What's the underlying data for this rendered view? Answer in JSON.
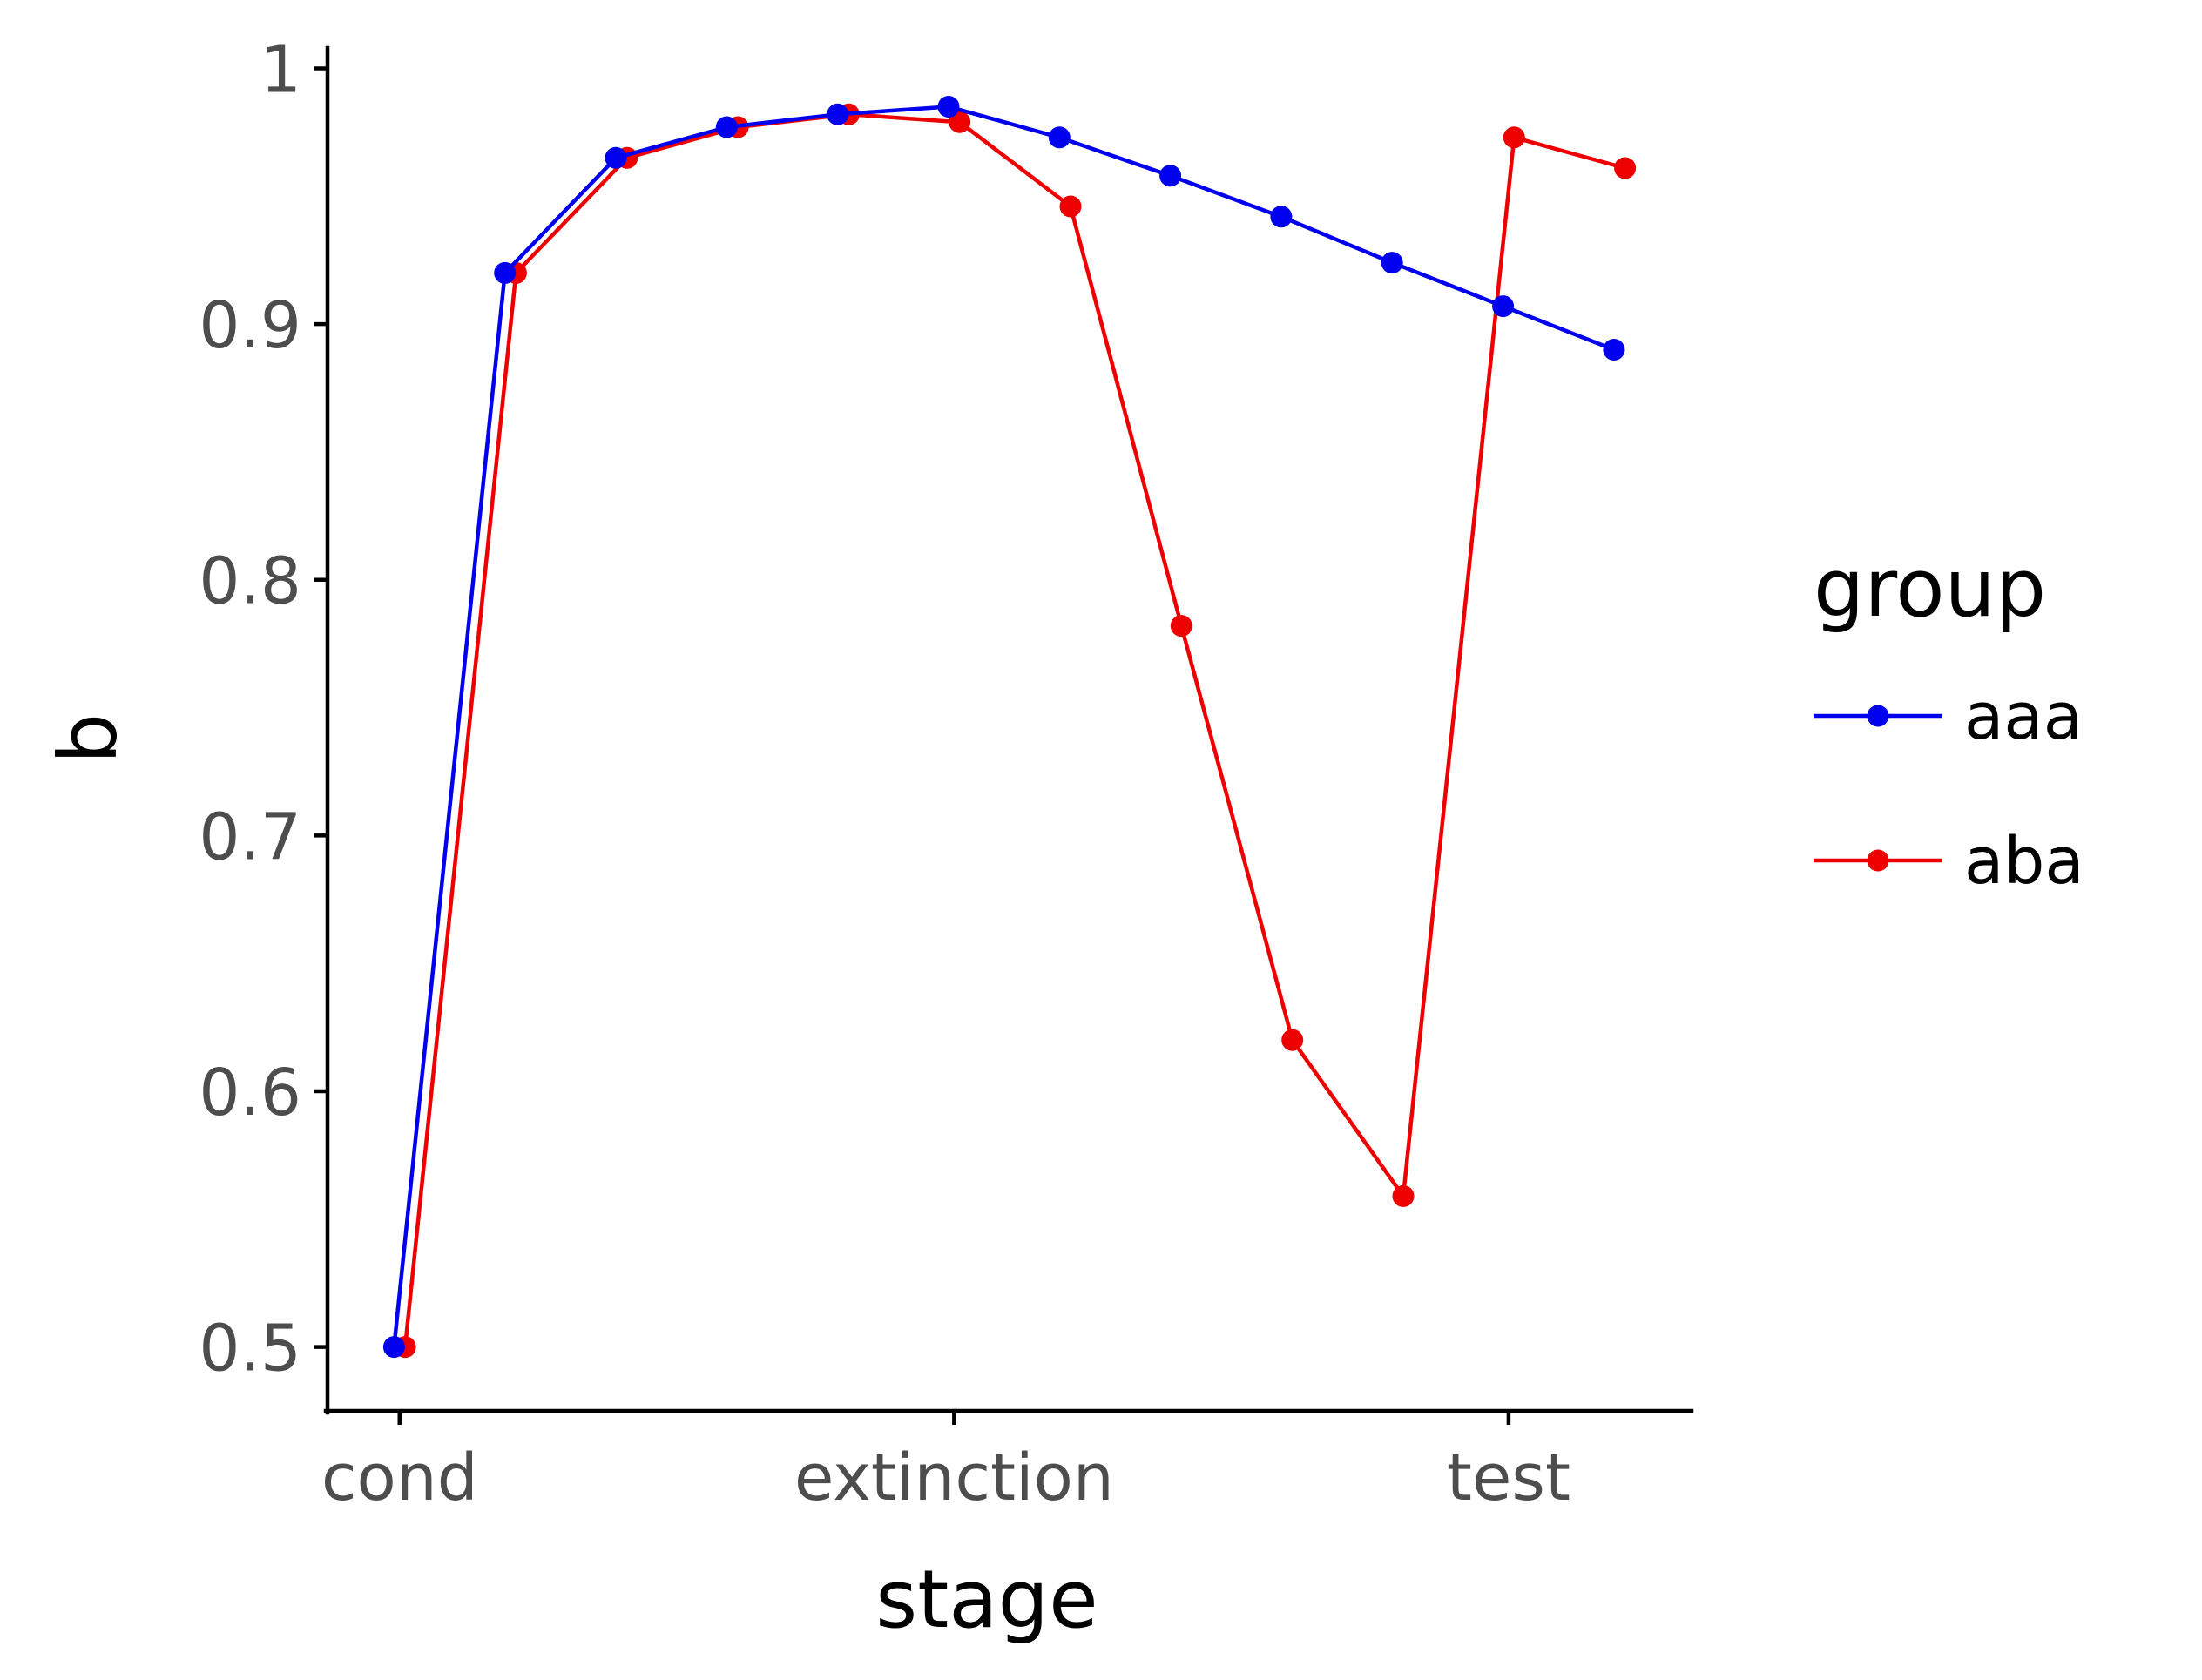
{
  "chart_data": {
    "type": "line",
    "xlabel": "stage",
    "ylabel": "b",
    "x_tick_labels": [
      "cond",
      "extinction",
      "test"
    ],
    "x_tick_steps": [
      0,
      5,
      10
    ],
    "y_ticks": [
      0.5,
      0.6,
      0.7,
      0.8,
      0.9,
      1.0
    ],
    "y_tick_labels": [
      "0.5",
      "0.6",
      "0.7",
      "0.8",
      "0.9",
      "1"
    ],
    "ylim": [
      0.475,
      1.008
    ],
    "xlim": [
      -0.65,
      11.65
    ],
    "grid": false,
    "legend": {
      "title": "group",
      "position": "right"
    },
    "x": [
      0,
      1,
      2,
      3,
      4,
      5,
      6,
      7,
      8,
      9,
      10,
      11
    ],
    "series": [
      {
        "name": "aaa",
        "color": "#0000ee",
        "values": [
          0.5,
          0.92,
          0.965,
          0.977,
          0.982,
          0.985,
          0.973,
          0.958,
          0.942,
          0.924,
          0.907,
          0.89
        ]
      },
      {
        "name": "aba",
        "color": "#ee0000",
        "values": [
          0.5,
          0.92,
          0.965,
          0.977,
          0.982,
          0.979,
          0.946,
          0.782,
          0.62,
          0.559,
          0.973,
          0.961
        ]
      }
    ]
  }
}
